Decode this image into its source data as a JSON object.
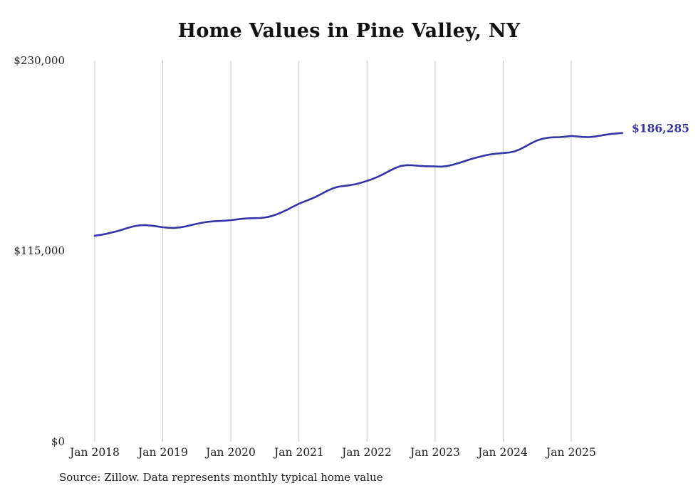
{
  "chart_data": {
    "type": "line",
    "title": "Home Values in Pine Valley, NY",
    "legend": "none",
    "grid": "vertical-only",
    "grid_color": "#c9c9c9",
    "series": [
      {
        "name": "Typical home value",
        "color": "#3533a8",
        "start_month": "2018-01",
        "frequency": "monthly",
        "values": [
          124300,
          124800,
          125400,
          126200,
          127100,
          128100,
          129200,
          130100,
          130600,
          130700,
          130400,
          129900,
          129400,
          129100,
          129000,
          129300,
          129900,
          130700,
          131500,
          132200,
          132700,
          133000,
          133200,
          133400,
          133700,
          134100,
          134500,
          134800,
          134900,
          135000,
          135300,
          136000,
          137100,
          138500,
          140100,
          141900,
          143600,
          145000,
          146300,
          147800,
          149600,
          151400,
          152900,
          153900,
          154400,
          154800,
          155400,
          156300,
          157400,
          158600,
          160000,
          161700,
          163500,
          165200,
          166400,
          166900,
          166800,
          166500,
          166300,
          166200,
          166100,
          166000,
          166300,
          167000,
          168000,
          169100,
          170200,
          171200,
          172100,
          172900,
          173500,
          173900,
          174200,
          174500,
          175200,
          176500,
          178300,
          180200,
          181800,
          182900,
          183500,
          183700,
          183800,
          184100,
          184500,
          184200,
          183900,
          183800,
          184100,
          184600,
          185200,
          185700,
          186000,
          186285
        ]
      }
    ],
    "x_axis": {
      "tick_labels": [
        "Jan 2018",
        "Jan 2019",
        "Jan 2020",
        "Jan 2021",
        "Jan 2022",
        "Jan 2023",
        "Jan 2024",
        "Jan 2025"
      ]
    },
    "y_axis": {
      "range": [
        0,
        230000
      ],
      "ticks": [
        {
          "label": "$230,000",
          "value": 230000
        },
        {
          "label": "$115,000",
          "value": 115000
        },
        {
          "label": "$0",
          "value": 0
        }
      ]
    },
    "end_label": "$186,285",
    "end_value": 186285,
    "source": "Source: Zillow. Data represents monthly typical home value"
  }
}
